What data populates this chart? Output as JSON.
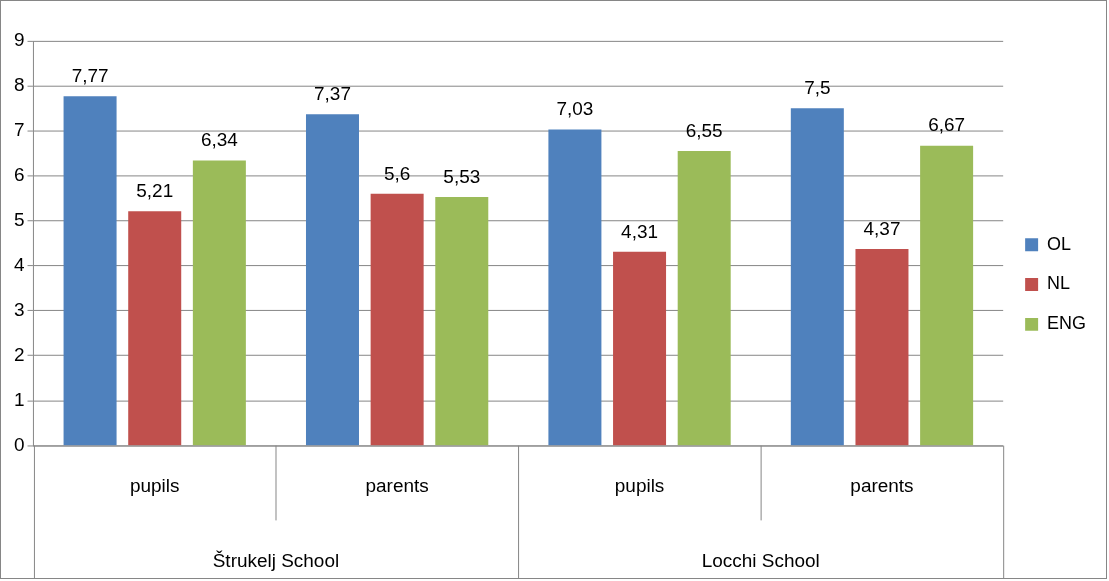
{
  "chart_data": {
    "type": "bar",
    "categories": [
      "pupils",
      "parents",
      "pupils",
      "parents"
    ],
    "series": [
      {
        "name": "OL",
        "color": "#4f81bd",
        "values": [
          7.77,
          7.37,
          7.03,
          7.5
        ],
        "value_labels": [
          "7,77",
          "7,37",
          "7,03",
          "7,5"
        ]
      },
      {
        "name": "NL",
        "color": "#c0504d",
        "values": [
          5.21,
          5.6,
          4.31,
          4.37
        ],
        "value_labels": [
          "5,21",
          "5,6",
          "4,31",
          "4,37"
        ]
      },
      {
        "name": "ENG",
        "color": "#9bbb59",
        "values": [
          6.34,
          5.53,
          6.55,
          6.67
        ],
        "value_labels": [
          "6,34",
          "5,53",
          "6,55",
          "6,67"
        ]
      }
    ],
    "annotations": [
      "Štrukelj School",
      "Locchi School"
    ],
    "ylim": [
      0,
      9
    ],
    "yticks": [
      0,
      1,
      2,
      3,
      4,
      5,
      6,
      7,
      8,
      9
    ],
    "grid": "y",
    "legend": "right"
  }
}
